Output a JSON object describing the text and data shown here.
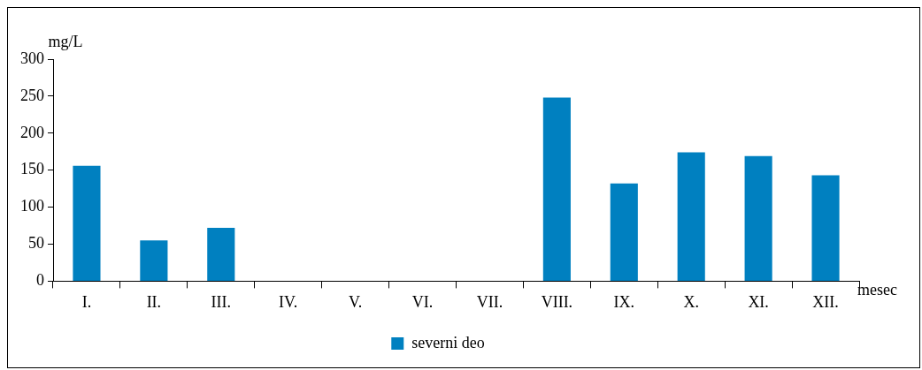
{
  "chart_data": {
    "type": "bar",
    "ylabel": "mg/L",
    "xlabel": "mesec",
    "categories": [
      "I.",
      "II.",
      "III.",
      "IV.",
      "V.",
      "VI.",
      "VII.",
      "VIII.",
      "IX.",
      "X.",
      "XI.",
      "XII."
    ],
    "series": [
      {
        "name": "severni deo",
        "color": "#0080c0",
        "values": [
          156,
          55,
          72,
          null,
          null,
          null,
          null,
          248,
          132,
          174,
          169,
          143
        ]
      }
    ],
    "ylim": [
      0,
      300
    ],
    "yticks": [
      0,
      50,
      100,
      150,
      200,
      250,
      300
    ],
    "grid": false,
    "legend": "bottom"
  }
}
